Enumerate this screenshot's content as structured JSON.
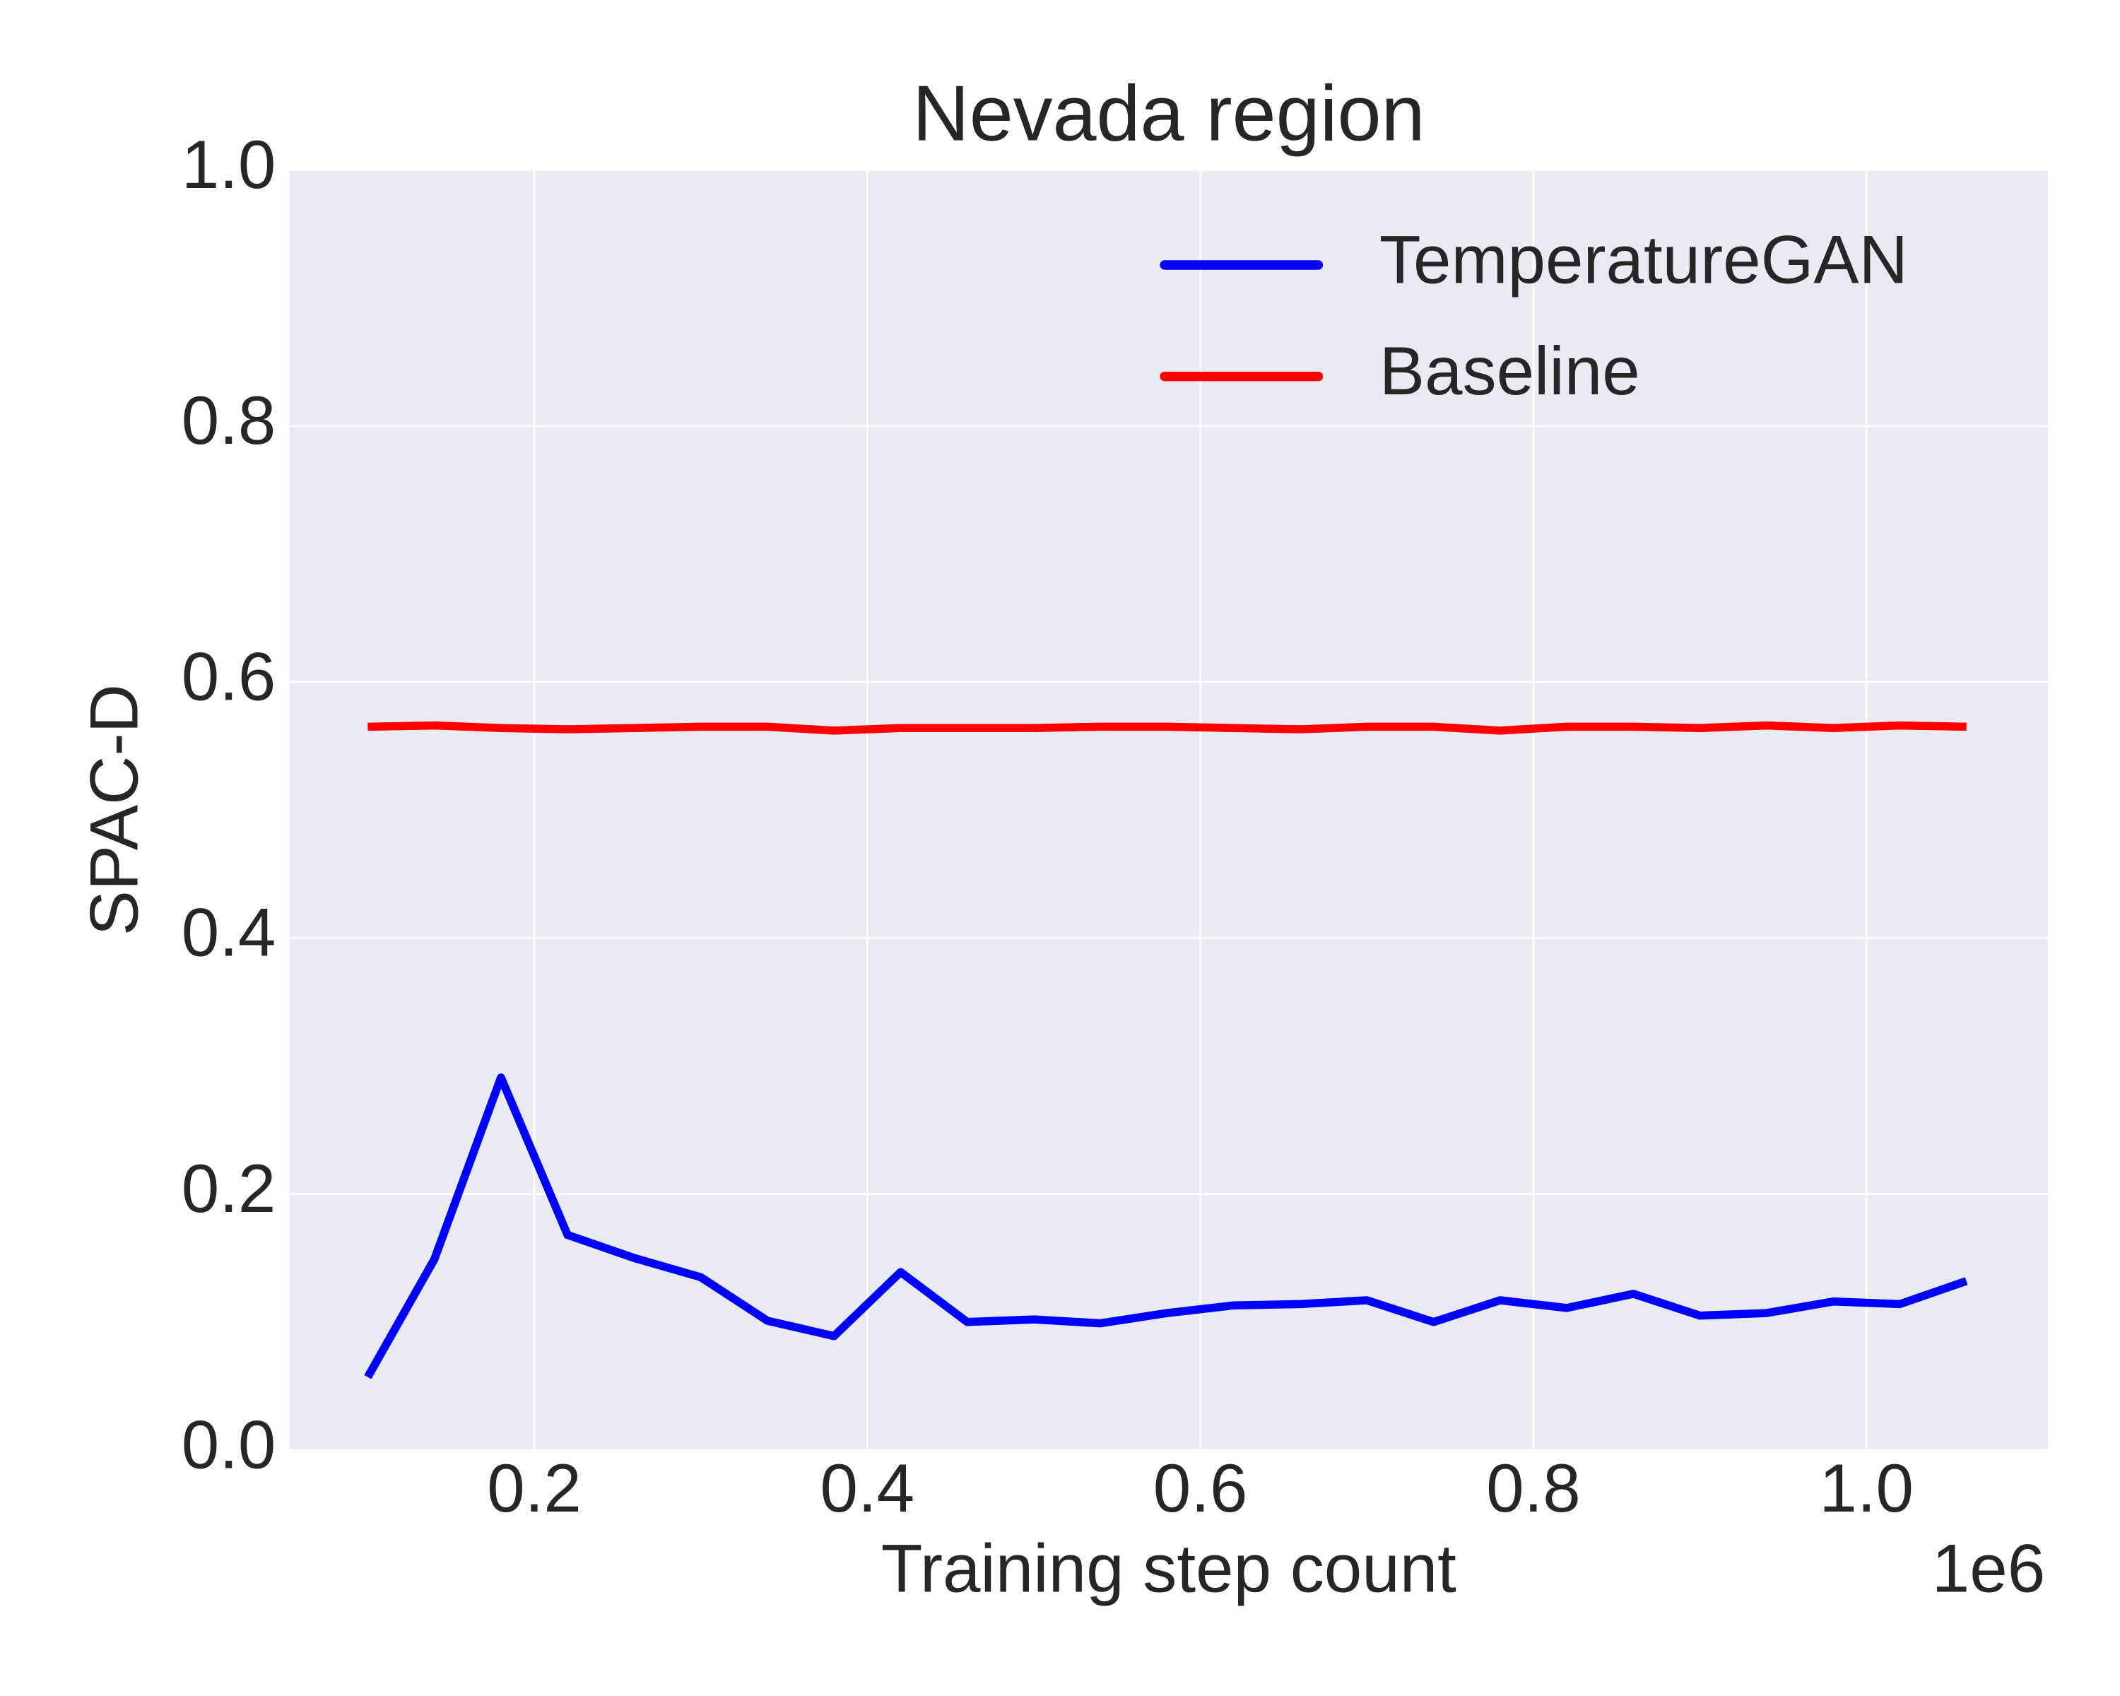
{
  "chart_data": {
    "type": "line",
    "title": "Nevada region",
    "x_label": "Training step count",
    "y_label": "SPAC-D",
    "x_offset_label": "1e6",
    "x": [
      100000,
      140000,
      180000,
      220000,
      260000,
      300000,
      340000,
      380000,
      420000,
      460000,
      500000,
      540000,
      580000,
      620000,
      660000,
      700000,
      740000,
      780000,
      820000,
      860000,
      900000,
      940000,
      980000,
      1020000,
      1060000
    ],
    "series": [
      {
        "name": "TemperatureGAN",
        "color": "#0000ff",
        "values": [
          0.057,
          0.149,
          0.291,
          0.168,
          0.15,
          0.135,
          0.101,
          0.089,
          0.139,
          0.1,
          0.102,
          0.099,
          0.107,
          0.113,
          0.114,
          0.117,
          0.1,
          0.117,
          0.111,
          0.122,
          0.105,
          0.107,
          0.116,
          0.114,
          0.132
        ]
      },
      {
        "name": "Baseline",
        "color": "#ff0000",
        "values": [
          0.565,
          0.566,
          0.564,
          0.563,
          0.564,
          0.565,
          0.565,
          0.562,
          0.564,
          0.564,
          0.564,
          0.565,
          0.565,
          0.564,
          0.563,
          0.565,
          0.565,
          0.562,
          0.565,
          0.565,
          0.564,
          0.566,
          0.564,
          0.566,
          0.565
        ]
      }
    ],
    "xlim": [
      53000,
      1109000
    ],
    "xticks": [
      {
        "value": 200000,
        "label": "0.2"
      },
      {
        "value": 400000,
        "label": "0.4"
      },
      {
        "value": 600000,
        "label": "0.6"
      },
      {
        "value": 800000,
        "label": "0.8"
      },
      {
        "value": 1000000,
        "label": "1.0"
      }
    ],
    "ylim": [
      0,
      1
    ],
    "yticks": [
      {
        "value": 0,
        "label": "0.0"
      },
      {
        "value": 0.2,
        "label": "0.2"
      },
      {
        "value": 0.4,
        "label": "0.4"
      },
      {
        "value": 0.6,
        "label": "0.6"
      },
      {
        "value": 0.8,
        "label": "0.8"
      },
      {
        "value": 1,
        "label": "1.0"
      }
    ],
    "grid": true,
    "legend": "upper-right"
  }
}
